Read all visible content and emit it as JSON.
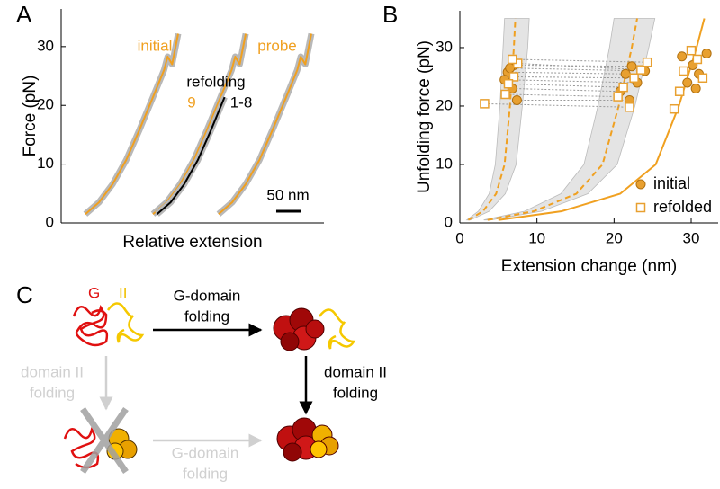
{
  "chart_data": [
    {
      "type": "line",
      "label": "A",
      "ylabel": "Force (pN)",
      "xlabel": "Relative extension",
      "xlim": [
        0,
        521
      ],
      "ylim": [
        0,
        36.4
      ],
      "yticks": [
        0,
        10,
        20,
        30
      ],
      "series": [
        {
          "name": "initial",
          "color": "#f0a020",
          "x": [
            48,
            75,
            102,
            129,
            155,
            182,
            204,
            211,
            220,
            232
          ],
          "values": [
            1.5,
            3.5,
            6.6,
            10.7,
            15.8,
            21.4,
            26,
            28.3,
            27,
            32.2
          ]
        },
        {
          "name": "9",
          "color": "#f0a020",
          "x": [
            182,
            209,
            236,
            263,
            289,
            316,
            338,
            345,
            354,
            366
          ],
          "values": [
            1.5,
            3.5,
            6.6,
            10.7,
            15.8,
            21.4,
            26,
            28.3,
            27,
            32.2
          ]
        },
        {
          "name": "1-8",
          "color": "#000000",
          "x": [
            190,
            217,
            244,
            271,
            297,
            324
          ],
          "values": [
            1.5,
            3.5,
            6.6,
            10.7,
            15.8,
            21.4
          ]
        },
        {
          "name": "probe",
          "color": "#f0a020",
          "x": [
            312,
            339,
            366,
            393,
            419,
            446,
            468,
            475,
            484,
            496
          ],
          "values": [
            1.5,
            3.5,
            6.6,
            10.7,
            15.8,
            21.4,
            26,
            28.3,
            27,
            32.2
          ]
        }
      ],
      "annotations": [
        "refolding"
      ],
      "scale_bar": {
        "label": "50 nm",
        "value": 50
      }
    },
    {
      "type": "scatter",
      "label": "B",
      "ylabel": "Unfolding force (pN)",
      "xlabel": "Extension change (nm)",
      "xlim": [
        0,
        33.5
      ],
      "ylim": [
        0,
        36.3
      ],
      "xticks": [
        0,
        10,
        20,
        30
      ],
      "yticks": [
        0,
        10,
        20,
        30
      ],
      "legend": "lower right",
      "series": [
        {
          "name": "initial",
          "color": "#e8a030",
          "marker": "circle",
          "x": [
            6.2,
            7.0,
            5.8,
            6.8,
            7.4,
            6.5,
            21.5,
            22.3,
            23.0,
            20.8,
            22.0,
            24.0,
            28.8,
            30.2,
            31.0,
            29.5,
            32.0,
            30.6
          ],
          "values": [
            25.8,
            27.0,
            24.5,
            23.0,
            21.0,
            26.5,
            25.5,
            26.8,
            24.0,
            22.5,
            21.0,
            26.0,
            28.5,
            27.0,
            25.5,
            24.0,
            29.0,
            23.0
          ]
        },
        {
          "name": "refolded",
          "color": "#e8a030",
          "marker": "square",
          "x": [
            7.0,
            6.3,
            7.5,
            5.9,
            3.2,
            6.8,
            22.6,
            21.2,
            23.5,
            20.5,
            22.0,
            24.3,
            29.0,
            30.8,
            31.5,
            28.5,
            27.8,
            30.0
          ],
          "values": [
            25.0,
            23.8,
            27.3,
            22.0,
            20.4,
            28.0,
            24.8,
            23.2,
            26.2,
            21.6,
            19.8,
            27.5,
            26.0,
            28.0,
            24.8,
            22.5,
            19.5,
            29.5
          ]
        }
      ],
      "bands": [
        {
          "x_low": [
            0.9,
            2.4,
            3.8,
            4.6,
            5.2,
            5.6,
            5.8
          ],
          "x_high": [
            1.4,
            3.8,
            5.9,
            7.3,
            8.1,
            8.8,
            9.0
          ],
          "values": [
            0.5,
            2,
            5,
            10,
            20,
            30,
            35
          ]
        },
        {
          "x_low": [
            3.1,
            8.4,
            13.1,
            16.1,
            17.9,
            19.4,
            20.0
          ],
          "x_high": [
            4.0,
            10.6,
            16.6,
            20.4,
            22.7,
            24.5,
            25.3
          ],
          "values": [
            0.5,
            2,
            5,
            10,
            20,
            30,
            35
          ]
        }
      ],
      "models": [
        {
          "style": "dashed",
          "color": "#f0a020",
          "x": [
            1.1,
            3.0,
            4.7,
            5.8,
            6.5,
            7.0,
            7.2
          ],
          "values": [
            0.5,
            2,
            5,
            10,
            20,
            30,
            35
          ]
        },
        {
          "style": "dashed",
          "color": "#f0a020",
          "x": [
            3.6,
            9.6,
            15.1,
            18.5,
            20.6,
            22.3,
            23.0
          ],
          "values": [
            0.5,
            2,
            5,
            10,
            20,
            30,
            35
          ]
        },
        {
          "style": "solid",
          "color": "#f0a020",
          "x": [
            5.0,
            13.2,
            20.8,
            25.4,
            28.4,
            30.7,
            31.7
          ],
          "values": [
            0.5,
            2,
            5,
            10,
            20,
            30,
            35
          ]
        }
      ]
    }
  ],
  "diagram": {
    "label": "C",
    "domain_labels": [
      "G",
      "II"
    ],
    "steps": [
      {
        "lines": [
          "G-domain",
          "folding"
        ]
      },
      {
        "lines": [
          "domain II",
          "folding"
        ]
      },
      {
        "lines": [
          "domain II",
          "folding"
        ]
      },
      {
        "lines": [
          "G-domain",
          "folding"
        ]
      }
    ]
  }
}
